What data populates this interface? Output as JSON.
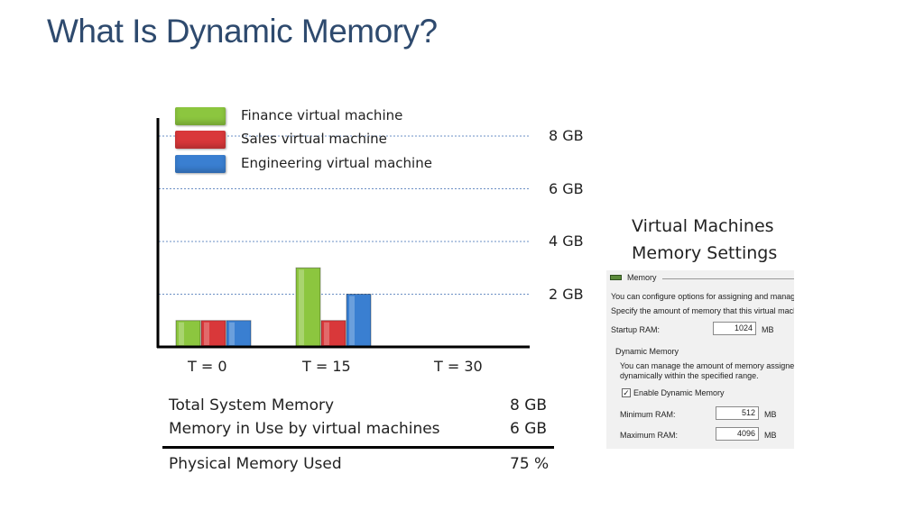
{
  "title": "What Is Dynamic Memory?",
  "chart_data": {
    "type": "bar",
    "categories": [
      "T = 0",
      "T = 15",
      "T = 30"
    ],
    "series": [
      {
        "name": "Finance virtual machine",
        "color": "#8cc63f",
        "values": [
          1,
          3,
          null
        ]
      },
      {
        "name": "Sales virtual machine",
        "color": "#d9383a",
        "values": [
          1,
          1,
          null
        ]
      },
      {
        "name": "Engineering virtual machine",
        "color": "#3a7fd1",
        "values": [
          1,
          2,
          null
        ]
      }
    ],
    "yticks": [
      "2 GB",
      "4 GB",
      "6 GB",
      "8 GB"
    ],
    "ytick_values": [
      2,
      4,
      6,
      8
    ],
    "ylim": [
      0,
      8
    ],
    "grid": "dashed horizontal",
    "legend_position": "top-left"
  },
  "memory_table": {
    "rows": [
      {
        "label": "Total System Memory",
        "value": "8 GB"
      },
      {
        "label": "Memory in Use by virtual machines",
        "value": "6 GB"
      }
    ],
    "total": {
      "label": "Physical Memory Used",
      "value": "75 %"
    }
  },
  "vm_settings": {
    "heading_line1": "Virtual Machines",
    "heading_line2": "Memory Settings",
    "panel": {
      "section_title": "Memory",
      "line1": "You can configure options for assigning and managin",
      "line2": "Specify the amount of memory that this virtual machi",
      "startup_label": "Startup RAM:",
      "startup_value": "1024",
      "startup_unit": "MB",
      "dynamic_title": "Dynamic Memory",
      "dynamic_line1": "You can manage the amount of memory assigned",
      "dynamic_line2": "dynamically within the specified range.",
      "enable_label": "Enable Dynamic Memory",
      "min_label": "Minimum RAM:",
      "min_value": "512",
      "min_unit": "MB",
      "max_label": "Maximum RAM:",
      "max_value": "4096",
      "max_unit": "MB"
    }
  }
}
